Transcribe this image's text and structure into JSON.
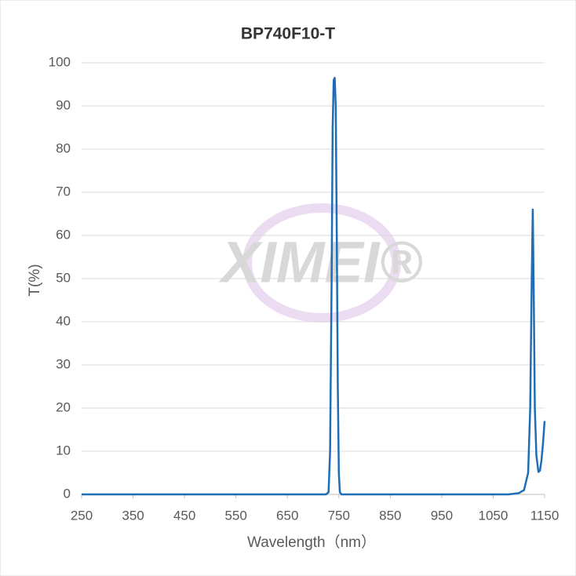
{
  "chart_data": {
    "type": "line",
    "title": "BP740F10-T",
    "x_label": "Wavelength（nm）",
    "y_label": "T(%)",
    "watermark": "XIMEI®",
    "x": [
      250,
      700,
      725,
      730,
      733,
      736,
      738,
      740,
      742,
      744,
      746,
      748,
      750,
      752,
      755,
      1080,
      1100,
      1110,
      1118,
      1122,
      1125,
      1127,
      1129,
      1131,
      1134,
      1138,
      1141,
      1144,
      1147,
      1150
    ],
    "series": [
      {
        "name": "T",
        "color": "#1f6db5",
        "values": [
          0,
          0,
          0,
          0.5,
          10,
          50,
          85,
          96,
          96.5,
          90,
          60,
          25,
          5,
          0.5,
          0,
          0,
          0.3,
          1,
          5,
          20,
          50,
          66,
          45,
          20,
          9,
          5.2,
          5.5,
          8,
          12,
          17
        ]
      }
    ],
    "xlim": [
      250,
      1150
    ],
    "xticks": [
      250,
      350,
      450,
      550,
      650,
      750,
      850,
      950,
      1050,
      1150
    ],
    "ylim": [
      0,
      100
    ],
    "yticks": [
      0,
      10,
      20,
      30,
      40,
      50,
      60,
      70,
      80,
      90,
      100
    ],
    "grid": true
  }
}
